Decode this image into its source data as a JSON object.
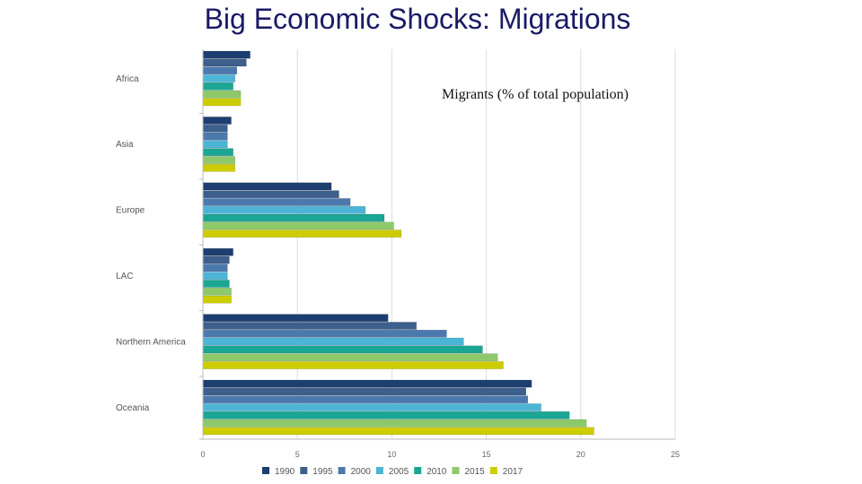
{
  "slide": {
    "title": "Big Economic Shocks: Migrations"
  },
  "chart_data": {
    "type": "bar",
    "orientation": "horizontal",
    "annotation": "Migrants (% of total population)",
    "categories": [
      "Africa",
      "Asia",
      "Europe",
      "LAC",
      "Northern America",
      "Oceania"
    ],
    "series": [
      {
        "name": "1990",
        "color": "#1c3f70",
        "values": [
          2.5,
          1.5,
          6.8,
          1.6,
          9.8,
          17.4
        ]
      },
      {
        "name": "1995",
        "color": "#3d5f8c",
        "values": [
          2.3,
          1.3,
          7.2,
          1.4,
          11.3,
          17.1
        ]
      },
      {
        "name": "2000",
        "color": "#4b79ad",
        "values": [
          1.8,
          1.3,
          7.8,
          1.3,
          12.9,
          17.2
        ]
      },
      {
        "name": "2005",
        "color": "#4cb5d6",
        "values": [
          1.7,
          1.3,
          8.6,
          1.3,
          13.8,
          17.9
        ]
      },
      {
        "name": "2010",
        "color": "#1aa693",
        "values": [
          1.6,
          1.6,
          9.6,
          1.4,
          14.8,
          19.4
        ]
      },
      {
        "name": "2015",
        "color": "#8dc96a",
        "values": [
          2.0,
          1.7,
          10.1,
          1.5,
          15.6,
          20.3
        ]
      },
      {
        "name": "2017",
        "color": "#cccc00",
        "values": [
          2.0,
          1.7,
          10.5,
          1.5,
          15.9,
          20.7
        ]
      }
    ],
    "xlim": [
      0,
      25
    ],
    "xticks": [
      "0",
      "5",
      "10",
      "15",
      "20",
      "25"
    ],
    "grid": true,
    "legend_position": "bottom"
  }
}
